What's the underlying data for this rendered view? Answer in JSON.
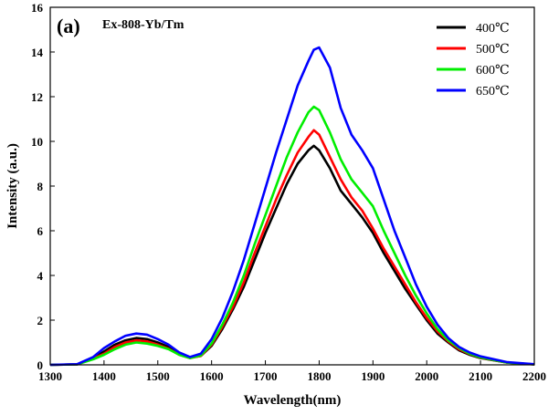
{
  "chart_data": {
    "type": "line",
    "panel_label": "(a)",
    "title": "Ex-808-Yb/Tm",
    "xlabel": "Wavelength(nm)",
    "ylabel": "Intensity (a.u.)",
    "xlim": [
      1300,
      2200
    ],
    "ylim": [
      0,
      16
    ],
    "xticks": [
      1300,
      1400,
      1500,
      1600,
      1700,
      1800,
      1900,
      2000,
      2100,
      2200
    ],
    "yticks": [
      0,
      2,
      4,
      6,
      8,
      10,
      12,
      14,
      16
    ],
    "grid": false,
    "legend_position": "top-right",
    "x": [
      1300,
      1350,
      1380,
      1400,
      1420,
      1440,
      1460,
      1480,
      1500,
      1520,
      1540,
      1560,
      1580,
      1600,
      1620,
      1640,
      1660,
      1680,
      1700,
      1720,
      1740,
      1760,
      1780,
      1790,
      1800,
      1820,
      1840,
      1860,
      1880,
      1900,
      1920,
      1940,
      1960,
      1980,
      2000,
      2020,
      2040,
      2060,
      2080,
      2100,
      2150,
      2200
    ],
    "series": [
      {
        "name": "400℃",
        "color": "#000000",
        "values": [
          0,
          0.02,
          0.3,
          0.6,
          0.9,
          1.1,
          1.2,
          1.15,
          1.0,
          0.8,
          0.5,
          0.32,
          0.4,
          0.85,
          1.6,
          2.5,
          3.5,
          4.7,
          5.9,
          7.0,
          8.1,
          9.0,
          9.6,
          9.8,
          9.6,
          8.8,
          7.8,
          7.2,
          6.6,
          5.9,
          5.0,
          4.2,
          3.4,
          2.7,
          2.0,
          1.4,
          1.0,
          0.65,
          0.45,
          0.3,
          0.1,
          0.02
        ]
      },
      {
        "name": "500℃",
        "color": "#ff0000",
        "values": [
          0,
          0.02,
          0.28,
          0.5,
          0.8,
          1.0,
          1.1,
          1.05,
          0.9,
          0.72,
          0.45,
          0.3,
          0.4,
          0.9,
          1.7,
          2.6,
          3.7,
          5.0,
          6.2,
          7.4,
          8.5,
          9.5,
          10.2,
          10.5,
          10.3,
          9.3,
          8.3,
          7.5,
          6.9,
          6.1,
          5.2,
          4.4,
          3.6,
          2.8,
          2.1,
          1.5,
          1.05,
          0.7,
          0.48,
          0.32,
          0.1,
          0.02
        ]
      },
      {
        "name": "600℃",
        "color": "#00ee00",
        "values": [
          0,
          0.02,
          0.25,
          0.45,
          0.7,
          0.9,
          1.0,
          0.95,
          0.85,
          0.7,
          0.45,
          0.3,
          0.42,
          0.95,
          1.8,
          2.8,
          4.0,
          5.4,
          6.7,
          8.0,
          9.3,
          10.4,
          11.3,
          11.55,
          11.4,
          10.4,
          9.2,
          8.3,
          7.7,
          7.1,
          6.0,
          5.0,
          4.0,
          3.1,
          2.3,
          1.6,
          1.1,
          0.75,
          0.5,
          0.33,
          0.1,
          0.02
        ]
      },
      {
        "name": "650℃",
        "color": "#0000ff",
        "values": [
          0,
          0.03,
          0.35,
          0.75,
          1.05,
          1.3,
          1.4,
          1.35,
          1.15,
          0.9,
          0.55,
          0.35,
          0.5,
          1.15,
          2.1,
          3.3,
          4.7,
          6.3,
          7.9,
          9.5,
          11.0,
          12.5,
          13.6,
          14.1,
          14.2,
          13.3,
          11.5,
          10.3,
          9.6,
          8.8,
          7.4,
          6.0,
          4.8,
          3.6,
          2.6,
          1.8,
          1.2,
          0.8,
          0.55,
          0.38,
          0.12,
          0.03
        ]
      }
    ]
  }
}
